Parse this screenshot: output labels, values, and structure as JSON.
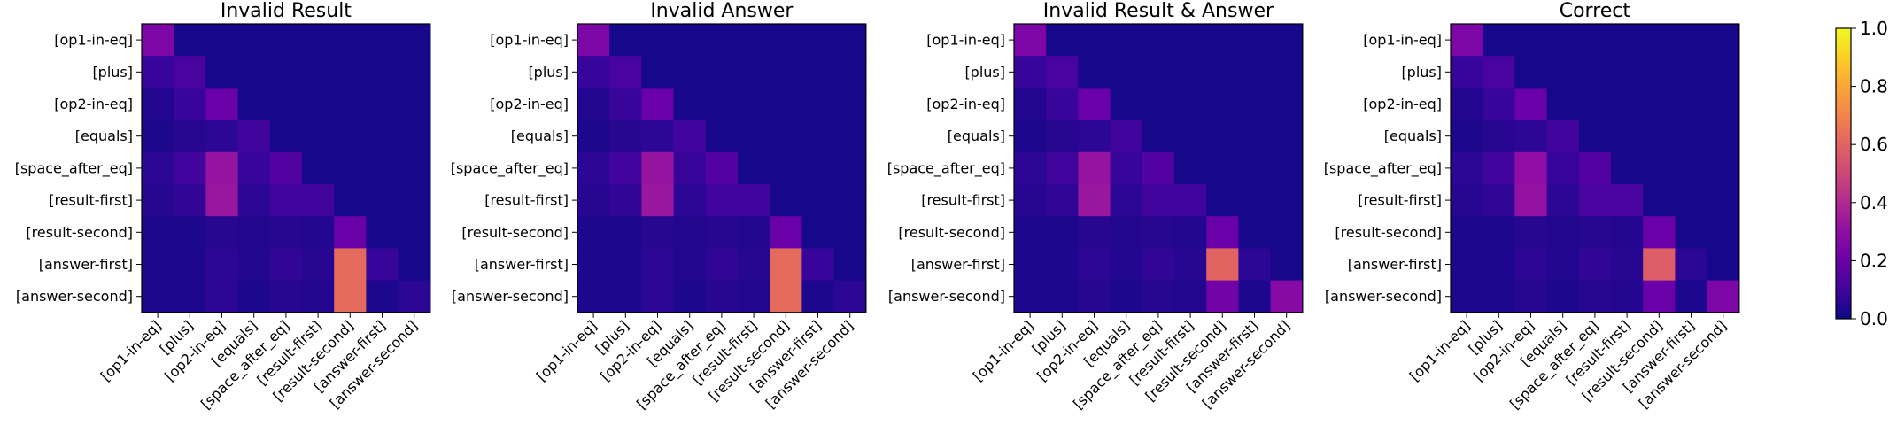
{
  "chart_data": {
    "type": "heatmap",
    "colormap": "plasma",
    "labels": [
      "[op1-in-eq]",
      "[plus]",
      "[op2-in-eq]",
      "[equals]",
      "[space_after_eq]",
      "[result-first]",
      "[result-second]",
      "[answer-first]",
      "[answer-second]"
    ],
    "colorbar": {
      "min": 0.0,
      "max": 1.0,
      "ticks": [
        "0.0",
        "0.2",
        "0.4",
        "0.6",
        "0.8",
        "1.0"
      ]
    },
    "panels": [
      {
        "title": "Invalid Result",
        "matrix": [
          [
            0.25,
            0.02,
            0.02,
            0.02,
            0.02,
            0.02,
            0.02,
            0.02,
            0.02
          ],
          [
            0.08,
            0.12,
            0.02,
            0.02,
            0.02,
            0.02,
            0.02,
            0.02,
            0.02
          ],
          [
            0.04,
            0.08,
            0.2,
            0.02,
            0.02,
            0.02,
            0.02,
            0.02,
            0.02
          ],
          [
            0.03,
            0.05,
            0.06,
            0.1,
            0.02,
            0.02,
            0.02,
            0.02,
            0.02
          ],
          [
            0.06,
            0.1,
            0.32,
            0.08,
            0.14,
            0.02,
            0.02,
            0.02,
            0.02
          ],
          [
            0.05,
            0.07,
            0.33,
            0.06,
            0.1,
            0.1,
            0.02,
            0.02,
            0.02
          ],
          [
            0.03,
            0.03,
            0.05,
            0.04,
            0.05,
            0.04,
            0.2,
            0.02,
            0.02
          ],
          [
            0.03,
            0.03,
            0.06,
            0.04,
            0.07,
            0.05,
            0.62,
            0.08,
            0.02
          ],
          [
            0.03,
            0.03,
            0.06,
            0.03,
            0.05,
            0.04,
            0.62,
            0.03,
            0.06
          ]
        ]
      },
      {
        "title": "Invalid Answer",
        "matrix": [
          [
            0.25,
            0.02,
            0.02,
            0.02,
            0.02,
            0.02,
            0.02,
            0.02,
            0.02
          ],
          [
            0.08,
            0.12,
            0.02,
            0.02,
            0.02,
            0.02,
            0.02,
            0.02,
            0.02
          ],
          [
            0.04,
            0.08,
            0.2,
            0.02,
            0.02,
            0.02,
            0.02,
            0.02,
            0.02
          ],
          [
            0.03,
            0.05,
            0.06,
            0.1,
            0.02,
            0.02,
            0.02,
            0.02,
            0.02
          ],
          [
            0.06,
            0.1,
            0.32,
            0.08,
            0.14,
            0.02,
            0.02,
            0.02,
            0.02
          ],
          [
            0.05,
            0.07,
            0.33,
            0.06,
            0.1,
            0.1,
            0.02,
            0.02,
            0.02
          ],
          [
            0.03,
            0.03,
            0.05,
            0.04,
            0.05,
            0.04,
            0.2,
            0.02,
            0.02
          ],
          [
            0.03,
            0.03,
            0.06,
            0.04,
            0.07,
            0.05,
            0.62,
            0.08,
            0.02
          ],
          [
            0.03,
            0.03,
            0.06,
            0.03,
            0.05,
            0.04,
            0.62,
            0.03,
            0.06
          ]
        ]
      },
      {
        "title": "Invalid Result & Answer",
        "matrix": [
          [
            0.25,
            0.02,
            0.02,
            0.02,
            0.02,
            0.02,
            0.02,
            0.02,
            0.02
          ],
          [
            0.08,
            0.12,
            0.02,
            0.02,
            0.02,
            0.02,
            0.02,
            0.02,
            0.02
          ],
          [
            0.04,
            0.08,
            0.2,
            0.02,
            0.02,
            0.02,
            0.02,
            0.02,
            0.02
          ],
          [
            0.03,
            0.05,
            0.06,
            0.1,
            0.02,
            0.02,
            0.02,
            0.02,
            0.02
          ],
          [
            0.06,
            0.1,
            0.32,
            0.08,
            0.14,
            0.02,
            0.02,
            0.02,
            0.02
          ],
          [
            0.05,
            0.07,
            0.33,
            0.06,
            0.1,
            0.1,
            0.02,
            0.02,
            0.02
          ],
          [
            0.03,
            0.03,
            0.05,
            0.04,
            0.05,
            0.04,
            0.2,
            0.02,
            0.02
          ],
          [
            0.03,
            0.03,
            0.06,
            0.04,
            0.07,
            0.05,
            0.6,
            0.06,
            0.02
          ],
          [
            0.03,
            0.03,
            0.05,
            0.03,
            0.05,
            0.04,
            0.22,
            0.03,
            0.28
          ]
        ]
      },
      {
        "title": "Correct",
        "matrix": [
          [
            0.25,
            0.02,
            0.02,
            0.02,
            0.02,
            0.02,
            0.02,
            0.02,
            0.02
          ],
          [
            0.08,
            0.12,
            0.02,
            0.02,
            0.02,
            0.02,
            0.02,
            0.02,
            0.02
          ],
          [
            0.04,
            0.08,
            0.2,
            0.02,
            0.02,
            0.02,
            0.02,
            0.02,
            0.02
          ],
          [
            0.03,
            0.05,
            0.06,
            0.1,
            0.02,
            0.02,
            0.02,
            0.02,
            0.02
          ],
          [
            0.06,
            0.1,
            0.3,
            0.08,
            0.14,
            0.02,
            0.02,
            0.02,
            0.02
          ],
          [
            0.05,
            0.07,
            0.31,
            0.06,
            0.12,
            0.12,
            0.02,
            0.02,
            0.02
          ],
          [
            0.03,
            0.03,
            0.05,
            0.04,
            0.05,
            0.04,
            0.2,
            0.02,
            0.02
          ],
          [
            0.03,
            0.03,
            0.06,
            0.04,
            0.07,
            0.05,
            0.58,
            0.06,
            0.02
          ],
          [
            0.03,
            0.03,
            0.05,
            0.03,
            0.05,
            0.04,
            0.2,
            0.03,
            0.25
          ]
        ]
      }
    ]
  }
}
